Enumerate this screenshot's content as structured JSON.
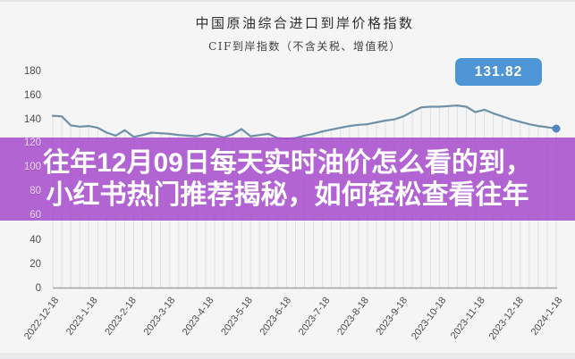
{
  "header": {
    "title": "中国原油综合进口到岸价格指数",
    "subtitle": "CIF到岸指数（不含关税、增值税）"
  },
  "badge": {
    "value": "131.82",
    "color": "#4e95d5"
  },
  "overlay": {
    "line1": "往年12月09日每天实时油价怎么看的到，",
    "line2": "小红书热门推荐揭秘，如何轻松查看往年",
    "bg_color": "#a850ce",
    "text_color": "#ffffff"
  },
  "chart_data": {
    "type": "line",
    "title": "中国原油综合进口到岸价格指数",
    "subtitle": "CIF到岸指数（不含关税、增值税）",
    "xlabel": "",
    "ylabel": "",
    "ylim": [
      0,
      180
    ],
    "yticks": [
      180,
      160,
      140,
      120,
      100,
      80,
      60,
      40,
      20,
      0
    ],
    "x_tick_labels": [
      "2022-12-18",
      "2023-1-18",
      "2023-2-18",
      "2023-3-18",
      "2023-4-18",
      "2023-5-18",
      "2023-6-18",
      "2023-7-18",
      "2023-8-18",
      "2023-9-18",
      "2023-10-18",
      "2023-11-18",
      "2023-12-18",
      "2024-1-18"
    ],
    "grid": "vertical-droplines-only",
    "legend_position": "none",
    "series": [
      {
        "name": "CIF到岸指数",
        "values": [
          142.5,
          142,
          134.5,
          133.5,
          134,
          132.5,
          128.5,
          126,
          130.5,
          125,
          126.5,
          128.5,
          128,
          127.5,
          126.5,
          126,
          125.5,
          127.5,
          126.5,
          124.5,
          127,
          131.5,
          125.5,
          126.5,
          127.5,
          124,
          123.5,
          124,
          126,
          127.5,
          129.5,
          131,
          132.5,
          134,
          135,
          135.5,
          137,
          138.5,
          139.5,
          142,
          146,
          149.5,
          150,
          150,
          150.5,
          151,
          150,
          145.5,
          147.5,
          144.5,
          142,
          139.5,
          137.5,
          135.5,
          134,
          133,
          131.82
        ]
      }
    ],
    "last_point": {
      "value": 131.82,
      "label": "131.82"
    },
    "colors": {
      "line": "#6e90a8",
      "end_dot": "#4d87c5",
      "dropline": "#dfdfe3",
      "axis": "#a3a3a6",
      "tick_text": "#4c4c4c"
    }
  }
}
